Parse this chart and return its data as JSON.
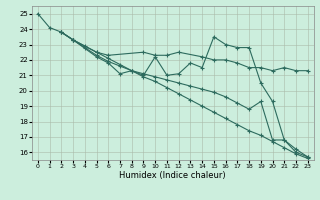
{
  "xlabel": "Humidex (Indice chaleur)",
  "bg_color": "#cceedd",
  "grid_color": "#aabbaa",
  "line_color": "#2d6b5e",
  "xlim": [
    -0.5,
    23.5
  ],
  "ylim": [
    15.5,
    25.5
  ],
  "xticks": [
    0,
    1,
    2,
    3,
    4,
    5,
    6,
    7,
    8,
    9,
    10,
    11,
    12,
    13,
    14,
    15,
    16,
    17,
    18,
    19,
    20,
    21,
    22,
    23
  ],
  "yticks": [
    16,
    17,
    18,
    19,
    20,
    21,
    22,
    23,
    24,
    25
  ],
  "series": [
    {
      "x": [
        0,
        1,
        2,
        3,
        4,
        5,
        6,
        7,
        8,
        9,
        10,
        11,
        12,
        13,
        14,
        15,
        16,
        17,
        18,
        19,
        20,
        21,
        22,
        23
      ],
      "y": [
        25.0,
        24.1,
        23.8,
        23.3,
        22.9,
        22.5,
        22.1,
        21.7,
        21.3,
        20.9,
        20.6,
        20.2,
        19.8,
        19.4,
        19.0,
        18.6,
        18.2,
        17.8,
        17.4,
        17.1,
        16.7,
        16.3,
        15.9,
        15.6
      ]
    },
    {
      "x": [
        2,
        3,
        4,
        5,
        6,
        7,
        8,
        9,
        10,
        11,
        12,
        13,
        14,
        15,
        16,
        17,
        18,
        19,
        20,
        21,
        22,
        23
      ],
      "y": [
        23.8,
        23.3,
        22.8,
        22.3,
        21.9,
        21.6,
        21.3,
        21.1,
        20.9,
        20.7,
        20.5,
        20.3,
        20.1,
        19.9,
        19.6,
        19.2,
        18.8,
        19.3,
        16.8,
        16.8,
        16.2,
        15.7
      ]
    },
    {
      "x": [
        2,
        3,
        5,
        6,
        7,
        8,
        9,
        10,
        11,
        12,
        13,
        14,
        15,
        16,
        17,
        18,
        19,
        20,
        21,
        22,
        23
      ],
      "y": [
        23.8,
        23.3,
        22.2,
        21.8,
        21.1,
        21.3,
        21.0,
        22.2,
        21.0,
        21.1,
        21.8,
        21.5,
        23.5,
        23.0,
        22.8,
        22.8,
        20.5,
        19.3,
        16.8,
        16.0,
        15.7
      ]
    },
    {
      "x": [
        2,
        3,
        5,
        6,
        9,
        10,
        11,
        12,
        14,
        15,
        16,
        17,
        18,
        19,
        20,
        21,
        22,
        23
      ],
      "y": [
        23.8,
        23.3,
        22.5,
        22.3,
        22.5,
        22.3,
        22.3,
        22.5,
        22.2,
        22.0,
        22.0,
        21.8,
        21.5,
        21.5,
        21.3,
        21.5,
        21.3,
        21.3
      ]
    }
  ]
}
